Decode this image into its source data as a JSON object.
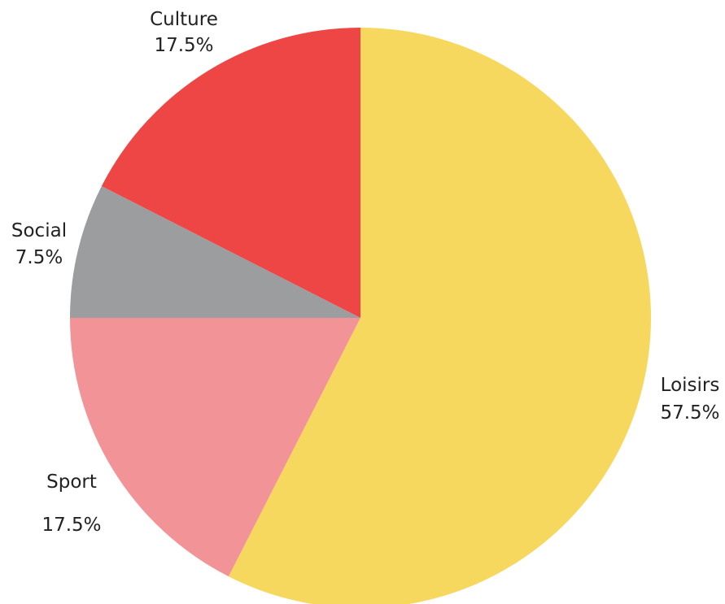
{
  "chart_data": {
    "type": "pie",
    "start_angle_deg": 0,
    "direction": "clockwise",
    "slices": [
      {
        "label": "Loisirs",
        "value": 57.5,
        "value_label": "57.5%",
        "color": "#F7D85E"
      },
      {
        "label": "Sport",
        "value": 17.5,
        "value_label": "17.5%",
        "color": "#F29497"
      },
      {
        "label": "Social",
        "value": 7.5,
        "value_label": "7.5%",
        "color": "#9C9D9F"
      },
      {
        "label": "Culture",
        "value": 17.5,
        "value_label": "17.5%",
        "color": "#EE4545"
      }
    ],
    "legend": "none"
  }
}
